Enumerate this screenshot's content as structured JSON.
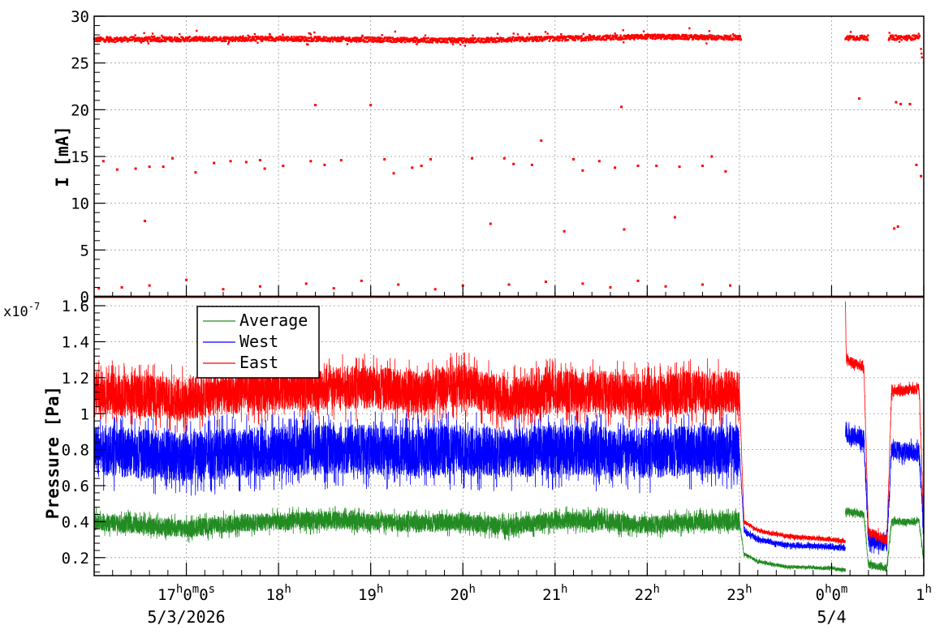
{
  "chart_data": [
    {
      "type": "scatter",
      "ylabel": "I [mA]",
      "ylim": [
        0,
        30
      ],
      "yticks": [
        "0",
        "5",
        "10",
        "15",
        "20",
        "25",
        "30"
      ],
      "grid": true,
      "color": "#ff0000",
      "x_range_hours": [
        16.0,
        25.0
      ],
      "series": [
        {
          "values_description_free": true,
          "baseline": 27.6,
          "segments": [
            [
              16.0,
              23.02
            ],
            [
              24.15,
              24.4
            ],
            [
              24.62,
              24.96
            ]
          ],
          "baseline_trend": [
            [
              16.0,
              27.5
            ],
            [
              18.0,
              27.6
            ],
            [
              20.0,
              27.4
            ],
            [
              22.0,
              27.8
            ],
            [
              23.0,
              27.7
            ]
          ],
          "outliers": [
            [
              16.1,
              14.5
            ],
            [
              16.25,
              13.6
            ],
            [
              16.45,
              13.7
            ],
            [
              16.55,
              8.1
            ],
            [
              16.6,
              13.9
            ],
            [
              16.75,
              13.9
            ],
            [
              16.85,
              14.8
            ],
            [
              17.1,
              13.3
            ],
            [
              17.3,
              14.3
            ],
            [
              17.48,
              14.5
            ],
            [
              17.65,
              14.4
            ],
            [
              17.8,
              14.6
            ],
            [
              17.85,
              13.7
            ],
            [
              18.05,
              14.0
            ],
            [
              18.4,
              20.5
            ],
            [
              18.35,
              14.5
            ],
            [
              18.5,
              14.1
            ],
            [
              18.68,
              14.6
            ],
            [
              19.0,
              20.5
            ],
            [
              19.15,
              14.7
            ],
            [
              19.25,
              13.2
            ],
            [
              19.45,
              13.8
            ],
            [
              19.55,
              14.0
            ],
            [
              19.65,
              14.7
            ],
            [
              20.1,
              14.8
            ],
            [
              20.3,
              7.8
            ],
            [
              20.45,
              14.8
            ],
            [
              20.55,
              14.2
            ],
            [
              20.75,
              14.1
            ],
            [
              20.85,
              16.7
            ],
            [
              21.1,
              7.0
            ],
            [
              21.2,
              14.7
            ],
            [
              21.3,
              13.5
            ],
            [
              21.48,
              14.5
            ],
            [
              21.65,
              13.8
            ],
            [
              21.72,
              20.3
            ],
            [
              21.75,
              7.2
            ],
            [
              21.9,
              14.0
            ],
            [
              22.1,
              14.0
            ],
            [
              22.3,
              8.5
            ],
            [
              22.35,
              13.9
            ],
            [
              22.6,
              14.0
            ],
            [
              22.7,
              15.0
            ],
            [
              22.85,
              13.4
            ],
            [
              24.3,
              21.2
            ],
            [
              24.7,
              20.8
            ],
            [
              24.75,
              20.6
            ],
            [
              24.85,
              20.6
            ],
            [
              24.68,
              7.3
            ],
            [
              24.72,
              7.5
            ],
            [
              24.92,
              14.1
            ],
            [
              24.97,
              12.9
            ],
            [
              16.05,
              0.9
            ],
            [
              16.3,
              1.0
            ],
            [
              16.6,
              1.2
            ],
            [
              17.0,
              1.8
            ],
            [
              17.4,
              0.8
            ],
            [
              17.8,
              1.1
            ],
            [
              18.3,
              1.4
            ],
            [
              18.6,
              0.9
            ],
            [
              18.9,
              1.7
            ],
            [
              19.3,
              1.3
            ],
            [
              19.7,
              0.8
            ],
            [
              20.0,
              1.2
            ],
            [
              20.5,
              1.3
            ],
            [
              20.9,
              1.6
            ],
            [
              21.3,
              1.4
            ],
            [
              21.6,
              1.0
            ],
            [
              21.9,
              1.7
            ],
            [
              22.2,
              1.1
            ],
            [
              22.6,
              1.3
            ],
            [
              22.9,
              1.2
            ]
          ]
        }
      ]
    },
    {
      "type": "line",
      "ylabel": "Pressure [Pa]",
      "y_exponent": "x10",
      "y_exponent_power": "-7",
      "ylim": [
        0.1,
        1.65
      ],
      "yticks": [
        "0.2",
        "0.4",
        "0.6",
        "0.8",
        "1",
        "1.2",
        "1.4",
        "1.6"
      ],
      "yticks_values": [
        0.2,
        0.4,
        0.6,
        0.8,
        1.0,
        1.2,
        1.4,
        1.6
      ],
      "grid": true,
      "legend_position": "top-left",
      "x_range_hours": [
        16.0,
        25.0
      ],
      "xticks": [
        {
          "hour": 17,
          "main": "17",
          "sup1": "h",
          "mid1": "0",
          "sup2": "m",
          "mid2": "0",
          "sup3": "s"
        },
        {
          "hour": 18,
          "main": "18",
          "sup1": "h"
        },
        {
          "hour": 19,
          "main": "19",
          "sup1": "h"
        },
        {
          "hour": 20,
          "main": "20",
          "sup1": "h"
        },
        {
          "hour": 21,
          "main": "21",
          "sup1": "h"
        },
        {
          "hour": 22,
          "main": "22",
          "sup1": "h"
        },
        {
          "hour": 23,
          "main": "23",
          "sup1": "h"
        },
        {
          "hour": 24,
          "main": "0",
          "sup1": "h",
          "mid1": "0",
          "sup2": "m"
        },
        {
          "hour": 25,
          "main": "1",
          "sup1": "h"
        }
      ],
      "date_labels": [
        {
          "hour": 17,
          "text": "5/3/2026"
        },
        {
          "hour": 24,
          "text": "5/4"
        }
      ],
      "series": [
        {
          "name": "Average",
          "color": "#228b22",
          "segments": [
            {
              "x": [
                16.0,
                16.5,
                17.0,
                17.5,
                18.0,
                18.5,
                19.0,
                19.5,
                20.0,
                20.5,
                21.0,
                21.5,
                22.0,
                22.5,
                23.0
              ],
              "y": [
                0.4,
                0.38,
                0.36,
                0.39,
                0.4,
                0.41,
                0.4,
                0.39,
                0.4,
                0.37,
                0.41,
                0.4,
                0.38,
                0.4,
                0.4
              ],
              "noise": 0.05
            },
            {
              "x": [
                23.0,
                23.05,
                23.2,
                23.5,
                24.0,
                24.15
              ],
              "y": [
                0.4,
                0.22,
                0.18,
                0.15,
                0.14,
                0.13
              ],
              "noise": 0.01
            },
            {
              "x": [
                24.15,
                24.35,
                24.4,
                24.6,
                24.65,
                24.95,
                25.0
              ],
              "y": [
                0.46,
                0.44,
                0.16,
                0.14,
                0.4,
                0.4,
                0.18
              ],
              "noise": 0.02
            }
          ]
        },
        {
          "name": "West",
          "color": "#0000ff",
          "segments": [
            {
              "x": [
                16.0,
                16.5,
                17.0,
                17.5,
                18.0,
                18.5,
                19.0,
                19.5,
                20.0,
                20.5,
                21.0,
                21.5,
                22.0,
                22.5,
                23.0
              ],
              "y": [
                0.8,
                0.78,
                0.76,
                0.78,
                0.79,
                0.8,
                0.8,
                0.79,
                0.8,
                0.78,
                0.8,
                0.79,
                0.78,
                0.8,
                0.8
              ],
              "noise": 0.14
            },
            {
              "x": [
                23.0,
                23.05,
                23.2,
                23.5,
                24.0,
                24.15
              ],
              "y": [
                0.8,
                0.35,
                0.3,
                0.27,
                0.26,
                0.25
              ],
              "noise": 0.015
            },
            {
              "x": [
                24.15,
                24.35,
                24.4,
                24.6,
                24.65,
                24.95,
                25.0
              ],
              "y": [
                0.88,
                0.86,
                0.3,
                0.28,
                0.8,
                0.78,
                0.35
              ],
              "noise": 0.05
            }
          ]
        },
        {
          "name": "East",
          "color": "#ff0000",
          "segments": [
            {
              "x": [
                16.0,
                16.5,
                17.0,
                17.5,
                18.0,
                18.5,
                19.0,
                19.5,
                20.0,
                20.5,
                21.0,
                21.5,
                22.0,
                22.5,
                23.0
              ],
              "y": [
                1.12,
                1.1,
                1.08,
                1.12,
                1.14,
                1.14,
                1.15,
                1.12,
                1.16,
                1.08,
                1.12,
                1.12,
                1.1,
                1.12,
                1.12
              ],
              "noise": 0.12
            },
            {
              "x": [
                23.0,
                23.05,
                23.2,
                23.5,
                24.0,
                24.15
              ],
              "y": [
                1.12,
                0.4,
                0.35,
                0.32,
                0.3,
                0.29
              ],
              "noise": 0.012
            },
            {
              "x": [
                24.15,
                24.16,
                24.35,
                24.4,
                24.6,
                24.65,
                24.95,
                25.0
              ],
              "y": [
                1.6,
                1.3,
                1.26,
                0.34,
                0.3,
                1.12,
                1.14,
                0.38
              ],
              "noise": 0.03
            }
          ]
        }
      ]
    }
  ]
}
